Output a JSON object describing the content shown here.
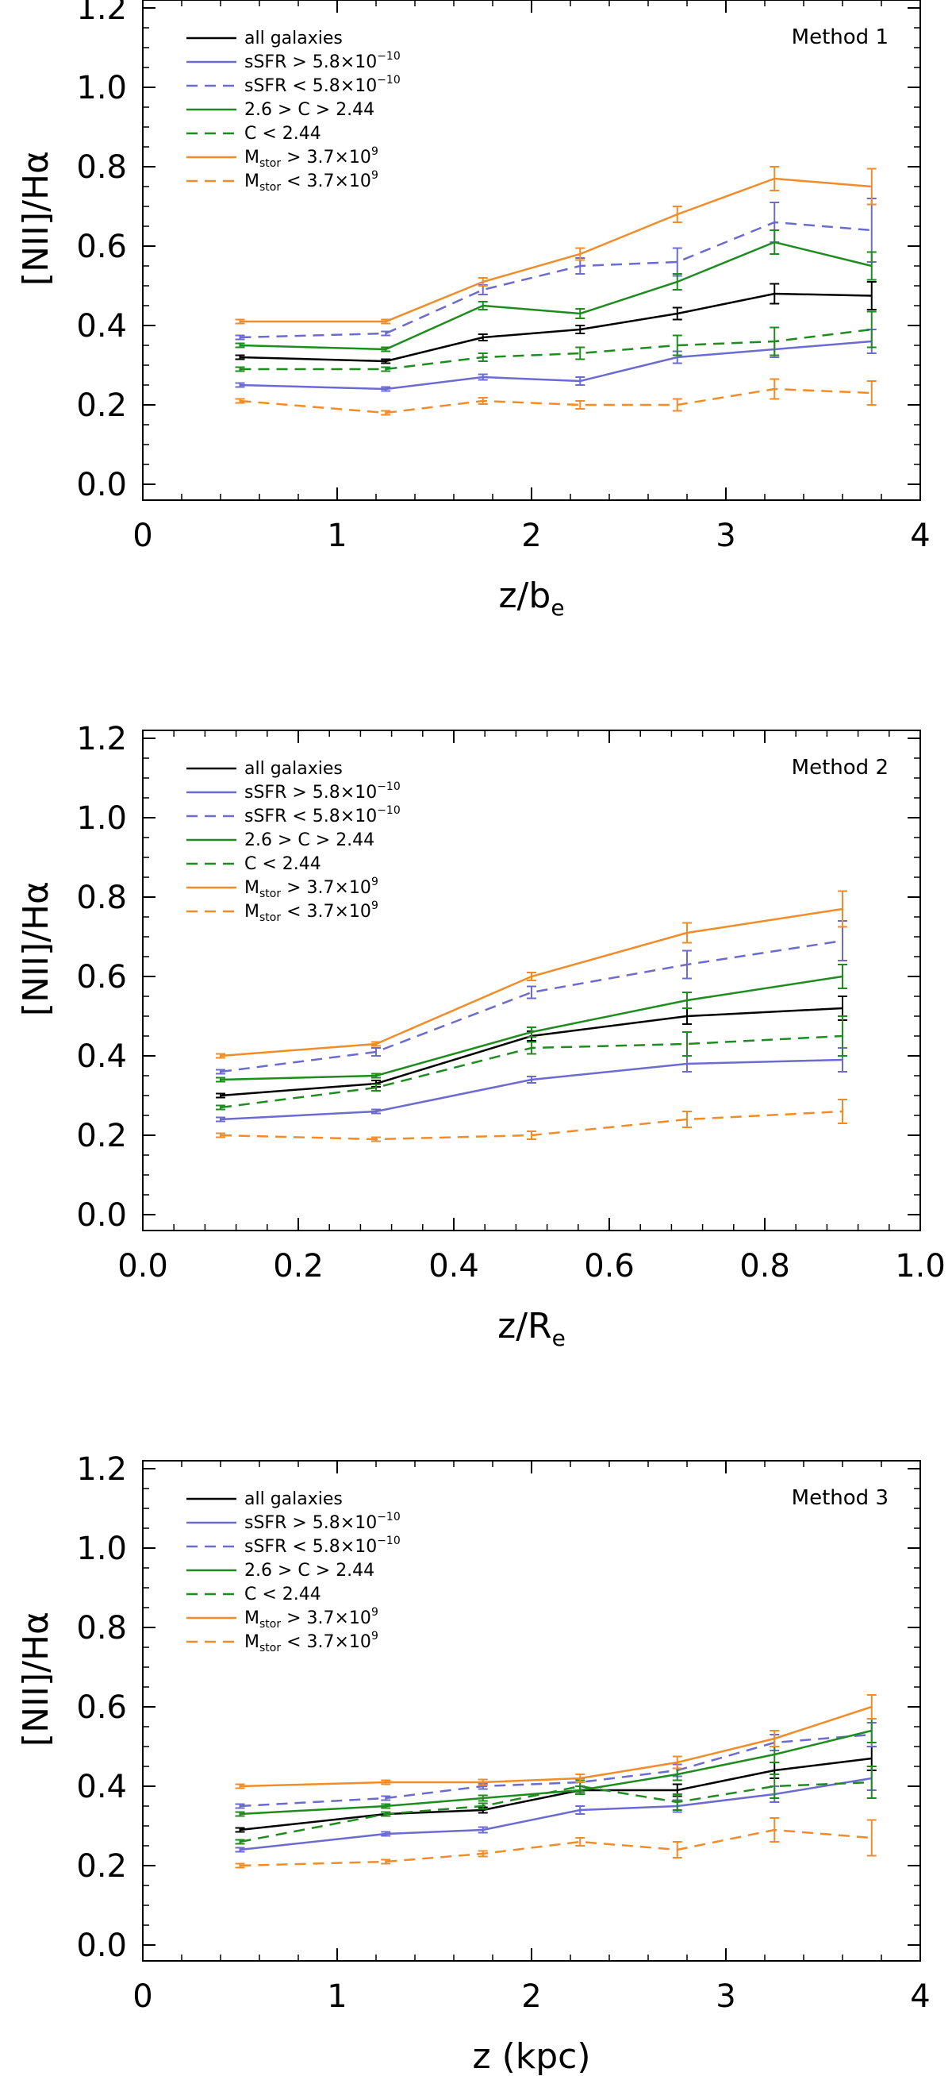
{
  "colors": {
    "all": "#000000",
    "ssfr": "#6B6BD0",
    "conc": "#1E8C1E",
    "mass": "#F28C28"
  },
  "legend": [
    {
      "key": "all",
      "label": "all galaxies",
      "color_key": "all",
      "dash": false
    },
    {
      "key": "ssfr_hi",
      "label": "sSFR > 5.8×10",
      "sup": "−10",
      "color_key": "ssfr",
      "dash": false
    },
    {
      "key": "ssfr_lo",
      "label": "sSFR < 5.8×10",
      "sup": "−10",
      "color_key": "ssfr",
      "dash": true
    },
    {
      "key": "c_hi",
      "label": "2.6 > C > 2.44",
      "color_key": "conc",
      "dash": false
    },
    {
      "key": "c_lo",
      "label": "C < 2.44",
      "color_key": "conc",
      "dash": true
    },
    {
      "key": "m_hi",
      "label": "M",
      "sub": "stor",
      "label_tail": " > 3.7×10",
      "sup": "9",
      "color_key": "mass",
      "dash": false
    },
    {
      "key": "m_lo",
      "label": "M",
      "sub": "stor",
      "label_tail": " < 3.7×10",
      "sup": "9",
      "color_key": "mass",
      "dash": true
    }
  ],
  "chart_data": [
    {
      "type": "line",
      "method": "Method 1",
      "xlabel_main": "z/b",
      "xlabel_sub": "e",
      "ylabel": "[NII]/Hα",
      "xlim": [
        0,
        4
      ],
      "ylim": [
        -0.04,
        1.22
      ],
      "xticks": [
        0,
        1,
        2,
        3,
        4
      ],
      "xtick_labels": [
        "0",
        "1",
        "2",
        "3",
        "4"
      ],
      "yticks": [
        0.0,
        0.2,
        0.4,
        0.6,
        0.8,
        1.0,
        1.2
      ],
      "ytick_labels": [
        "0.0",
        "0.2",
        "0.4",
        "0.6",
        "0.8",
        "1.0",
        "1.2"
      ],
      "x": [
        0.5,
        1.25,
        1.75,
        2.25,
        2.75,
        3.25,
        3.75
      ],
      "series": [
        {
          "key": "all",
          "values": [
            0.32,
            0.31,
            0.37,
            0.39,
            0.43,
            0.48,
            0.475
          ],
          "errors": [
            0.005,
            0.005,
            0.008,
            0.01,
            0.015,
            0.025,
            0.035
          ]
        },
        {
          "key": "ssfr_hi",
          "values": [
            0.25,
            0.24,
            0.27,
            0.26,
            0.32,
            0.34,
            0.36
          ],
          "errors": [
            0.005,
            0.005,
            0.007,
            0.01,
            0.015,
            0.02,
            0.03
          ]
        },
        {
          "key": "ssfr_lo",
          "values": [
            0.37,
            0.38,
            0.49,
            0.55,
            0.56,
            0.66,
            0.64
          ],
          "errors": [
            0.005,
            0.005,
            0.012,
            0.02,
            0.035,
            0.05,
            0.08
          ]
        },
        {
          "key": "c_hi",
          "values": [
            0.35,
            0.34,
            0.45,
            0.43,
            0.51,
            0.61,
            0.55
          ],
          "errors": [
            0.005,
            0.005,
            0.01,
            0.012,
            0.02,
            0.03,
            0.035
          ]
        },
        {
          "key": "c_lo",
          "values": [
            0.29,
            0.29,
            0.32,
            0.33,
            0.35,
            0.36,
            0.39
          ],
          "errors": [
            0.005,
            0.005,
            0.01,
            0.015,
            0.025,
            0.035,
            0.045
          ]
        },
        {
          "key": "m_hi",
          "values": [
            0.41,
            0.41,
            0.51,
            0.58,
            0.68,
            0.77,
            0.75
          ],
          "errors": [
            0.005,
            0.005,
            0.01,
            0.015,
            0.02,
            0.03,
            0.045
          ]
        },
        {
          "key": "m_lo",
          "values": [
            0.21,
            0.18,
            0.21,
            0.2,
            0.2,
            0.24,
            0.23
          ],
          "errors": [
            0.005,
            0.005,
            0.008,
            0.01,
            0.015,
            0.025,
            0.03
          ]
        }
      ]
    },
    {
      "type": "line",
      "method": "Method 2",
      "xlabel_main": "z/R",
      "xlabel_sub": "e",
      "ylabel": "[NII]/Hα",
      "xlim": [
        0,
        1
      ],
      "ylim": [
        -0.04,
        1.22
      ],
      "xticks": [
        0.0,
        0.2,
        0.4,
        0.6,
        0.8,
        1.0
      ],
      "xtick_labels": [
        "0.0",
        "0.2",
        "0.4",
        "0.6",
        "0.8",
        "1.0"
      ],
      "yticks": [
        0.0,
        0.2,
        0.4,
        0.6,
        0.8,
        1.0,
        1.2
      ],
      "ytick_labels": [
        "0.0",
        "0.2",
        "0.4",
        "0.6",
        "0.8",
        "1.0",
        "1.2"
      ],
      "x": [
        0.1,
        0.3,
        0.5,
        0.7,
        0.9
      ],
      "series": [
        {
          "key": "all",
          "values": [
            0.3,
            0.33,
            0.45,
            0.5,
            0.52
          ],
          "errors": [
            0.005,
            0.008,
            0.012,
            0.02,
            0.03
          ]
        },
        {
          "key": "ssfr_hi",
          "values": [
            0.24,
            0.26,
            0.34,
            0.38,
            0.39
          ],
          "errors": [
            0.005,
            0.005,
            0.008,
            0.02,
            0.03
          ]
        },
        {
          "key": "ssfr_lo",
          "values": [
            0.36,
            0.41,
            0.56,
            0.63,
            0.69
          ],
          "errors": [
            0.005,
            0.01,
            0.015,
            0.035,
            0.05
          ]
        },
        {
          "key": "c_hi",
          "values": [
            0.34,
            0.35,
            0.46,
            0.54,
            0.6
          ],
          "errors": [
            0.005,
            0.005,
            0.012,
            0.02,
            0.03
          ]
        },
        {
          "key": "c_lo",
          "values": [
            0.27,
            0.32,
            0.42,
            0.43,
            0.45
          ],
          "errors": [
            0.005,
            0.008,
            0.015,
            0.03,
            0.05
          ]
        },
        {
          "key": "m_hi",
          "values": [
            0.4,
            0.43,
            0.6,
            0.71,
            0.77
          ],
          "errors": [
            0.005,
            0.005,
            0.01,
            0.025,
            0.045
          ]
        },
        {
          "key": "m_lo",
          "values": [
            0.2,
            0.19,
            0.2,
            0.24,
            0.26
          ],
          "errors": [
            0.005,
            0.005,
            0.01,
            0.02,
            0.03
          ]
        }
      ]
    },
    {
      "type": "line",
      "method": "Method 3",
      "xlabel_main": "z (kpc)",
      "xlabel_sub": "",
      "ylabel": "[NII]/Hα",
      "xlim": [
        0,
        4
      ],
      "ylim": [
        -0.04,
        1.22
      ],
      "xticks": [
        0,
        1,
        2,
        3,
        4
      ],
      "xtick_labels": [
        "0",
        "1",
        "2",
        "3",
        "4"
      ],
      "yticks": [
        0.0,
        0.2,
        0.4,
        0.6,
        0.8,
        1.0,
        1.2
      ],
      "ytick_labels": [
        "0.0",
        "0.2",
        "0.4",
        "0.6",
        "0.8",
        "1.0",
        "1.2"
      ],
      "x": [
        0.5,
        1.25,
        1.75,
        2.25,
        2.75,
        3.25,
        3.75
      ],
      "series": [
        {
          "key": "all",
          "values": [
            0.29,
            0.33,
            0.34,
            0.39,
            0.39,
            0.44,
            0.47
          ],
          "errors": [
            0.005,
            0.005,
            0.007,
            0.01,
            0.015,
            0.02,
            0.03
          ]
        },
        {
          "key": "ssfr_hi",
          "values": [
            0.24,
            0.28,
            0.29,
            0.34,
            0.35,
            0.38,
            0.42
          ],
          "errors": [
            0.005,
            0.005,
            0.007,
            0.01,
            0.015,
            0.02,
            0.03
          ]
        },
        {
          "key": "ssfr_lo",
          "values": [
            0.35,
            0.37,
            0.4,
            0.41,
            0.44,
            0.51,
            0.53
          ],
          "errors": [
            0.005,
            0.005,
            0.007,
            0.01,
            0.015,
            0.02,
            0.03
          ]
        },
        {
          "key": "c_hi",
          "values": [
            0.33,
            0.35,
            0.37,
            0.39,
            0.43,
            0.48,
            0.54
          ],
          "errors": [
            0.005,
            0.005,
            0.007,
            0.01,
            0.015,
            0.02,
            0.03
          ]
        },
        {
          "key": "c_lo",
          "values": [
            0.26,
            0.33,
            0.35,
            0.4,
            0.36,
            0.4,
            0.41
          ],
          "errors": [
            0.005,
            0.005,
            0.007,
            0.015,
            0.02,
            0.03,
            0.04
          ]
        },
        {
          "key": "m_hi",
          "values": [
            0.4,
            0.41,
            0.41,
            0.42,
            0.46,
            0.52,
            0.6
          ],
          "errors": [
            0.005,
            0.005,
            0.007,
            0.01,
            0.015,
            0.02,
            0.03
          ]
        },
        {
          "key": "m_lo",
          "values": [
            0.2,
            0.21,
            0.23,
            0.26,
            0.24,
            0.29,
            0.27
          ],
          "errors": [
            0.005,
            0.005,
            0.007,
            0.01,
            0.02,
            0.03,
            0.045
          ]
        }
      ]
    }
  ]
}
